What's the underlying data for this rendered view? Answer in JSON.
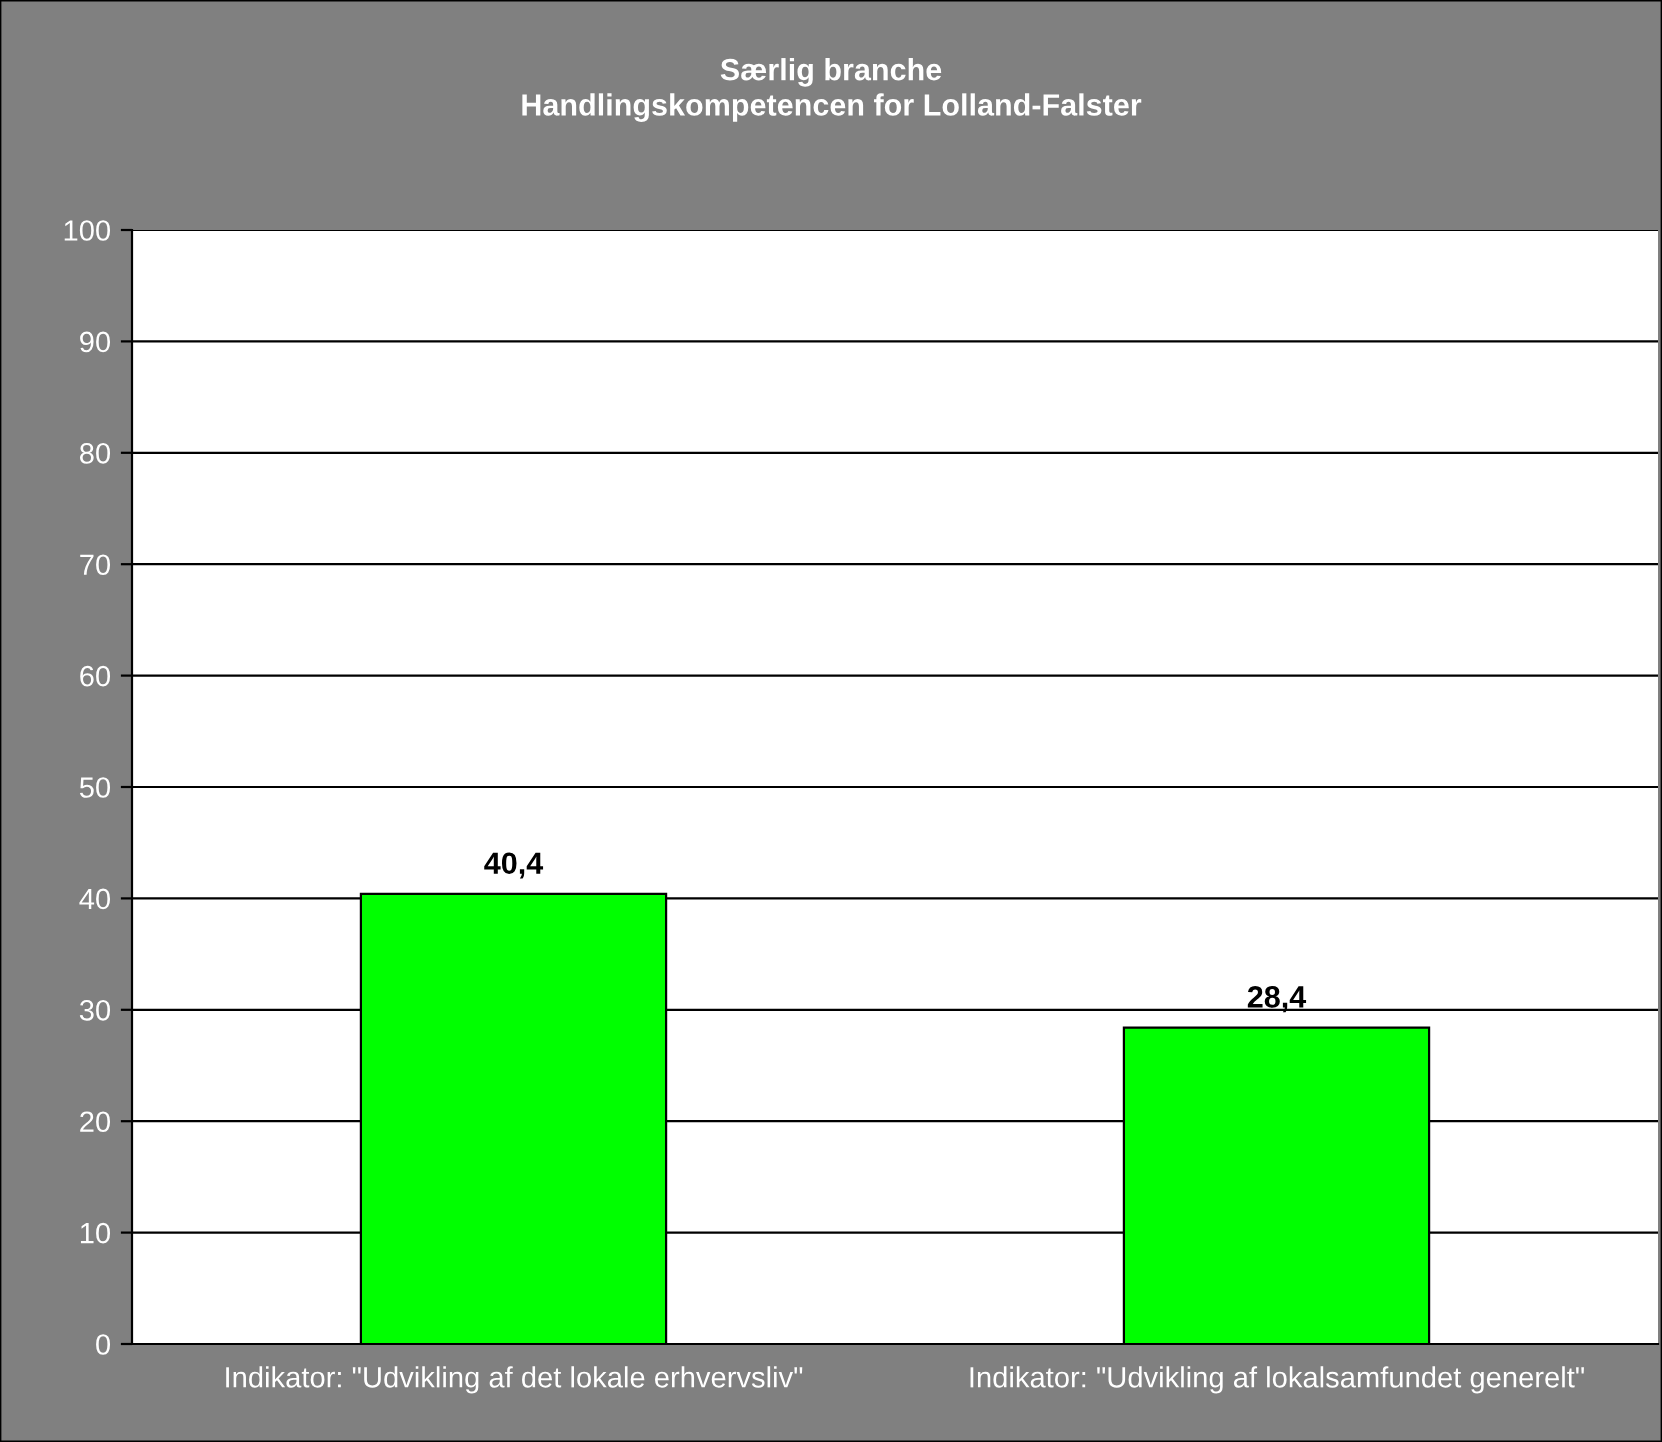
{
  "chart_data": {
    "type": "bar",
    "title": "Særlig branche\nHandlingskompetencen for Lolland-Falster",
    "categories": [
      "Indikator: \"Udvikling af det lokale erhvervsliv\"",
      "Indikator: \"Udvikling af lokalsamfundet generelt\""
    ],
    "values": [
      40.4,
      28.4
    ],
    "value_labels": [
      "40,4",
      "28,4"
    ],
    "color": "#00ff00",
    "ylim": [
      0,
      100
    ],
    "yticks": [
      0,
      10,
      20,
      30,
      40,
      50,
      60,
      70,
      80,
      90,
      100
    ],
    "grid": "y",
    "legend": false
  }
}
